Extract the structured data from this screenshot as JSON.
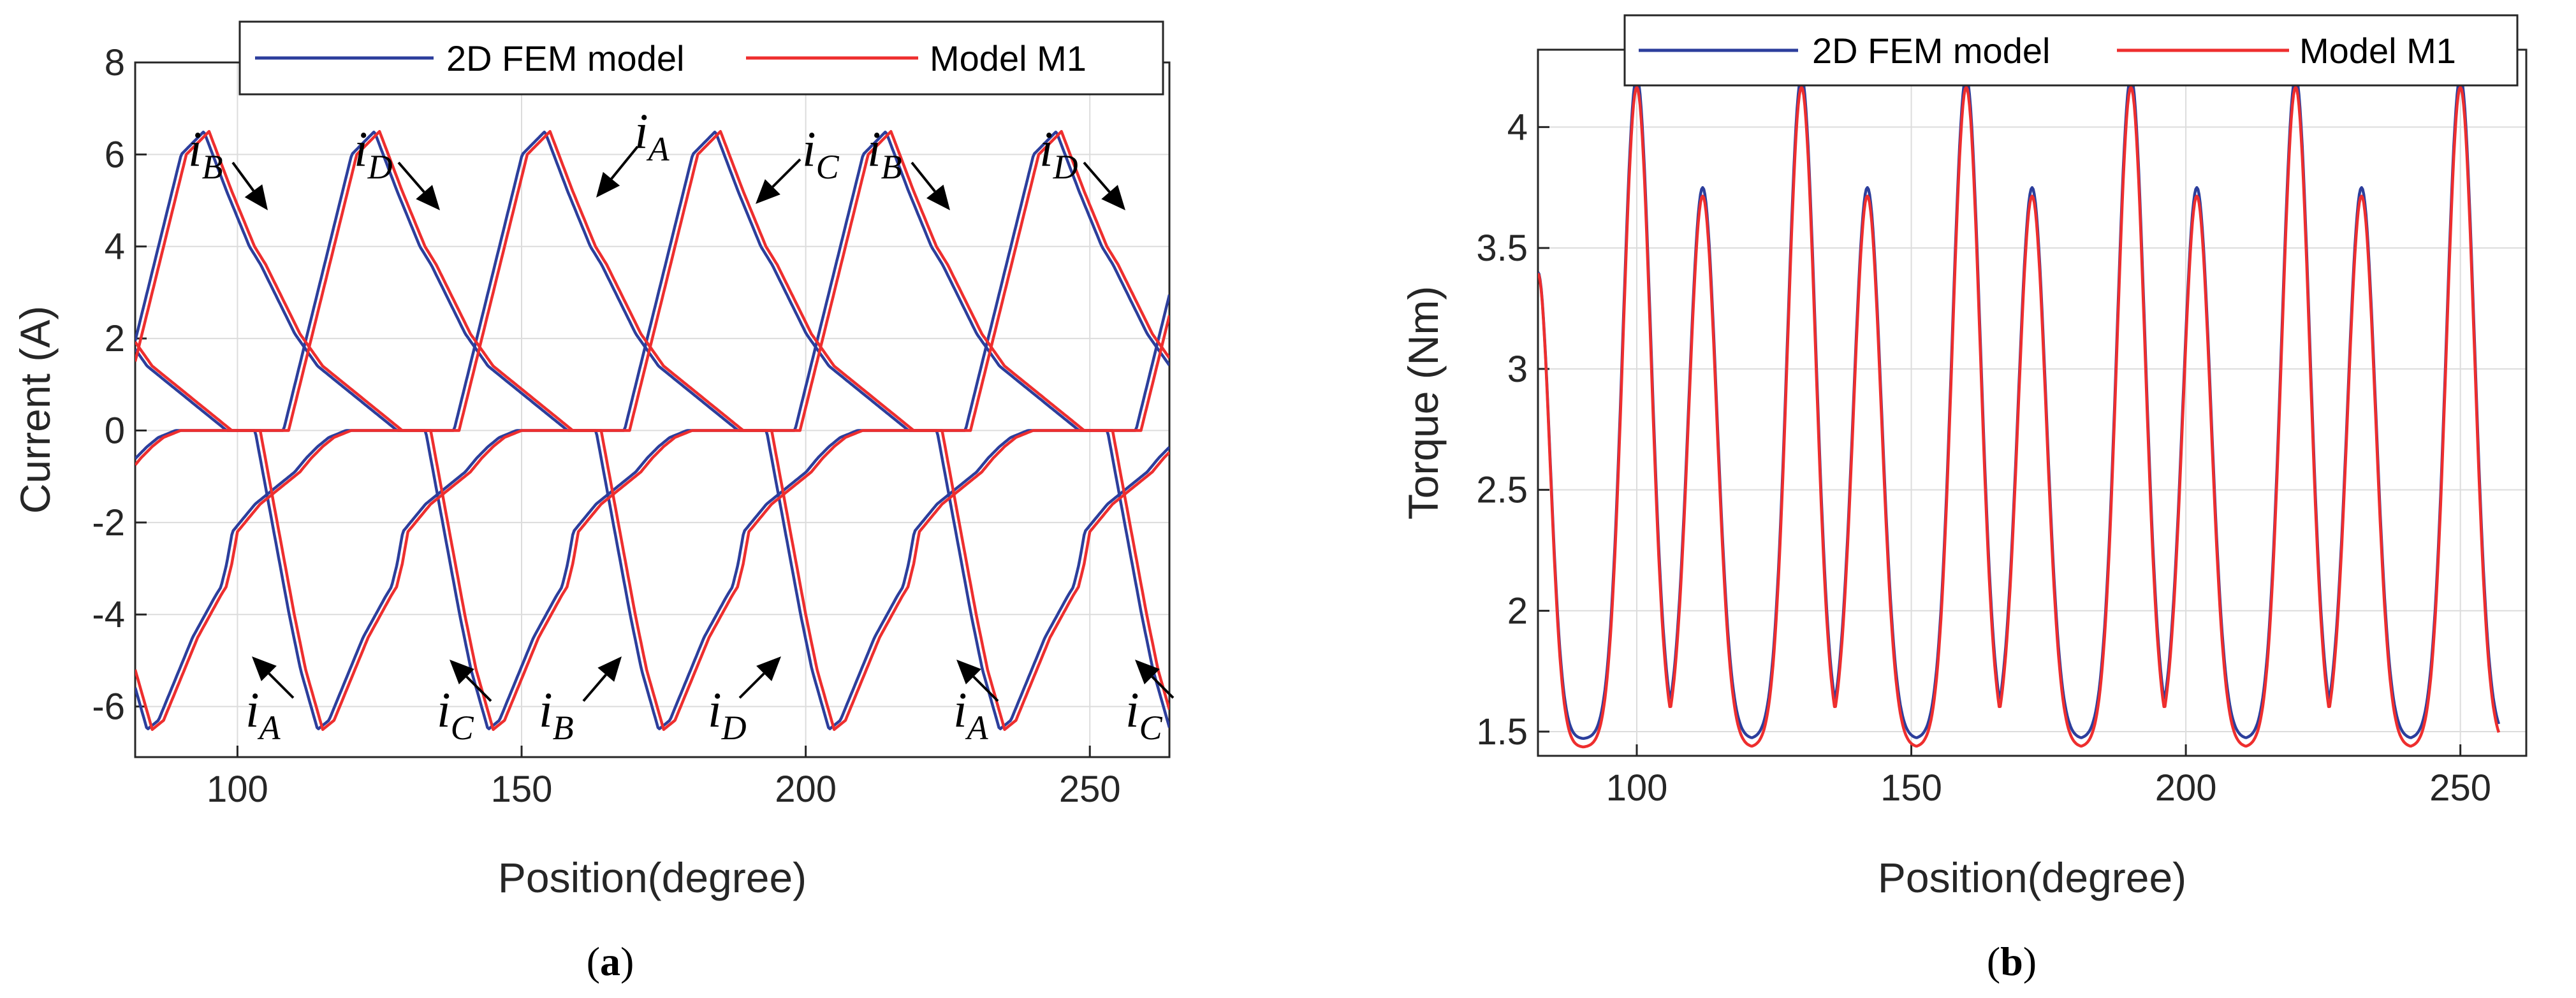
{
  "chart_data": [
    {
      "type": "line",
      "panel": "a",
      "xlabel": "Position(degree)",
      "ylabel": "Current (A)",
      "xlim": [
        82,
        264
      ],
      "ylim": [
        -7.1,
        8
      ],
      "xticks": [
        100,
        150,
        200,
        250
      ],
      "yticks": [
        -6,
        -4,
        -2,
        0,
        2,
        4,
        6,
        8
      ],
      "grid": true,
      "legend": {
        "position": "top",
        "entries": [
          "2D FEM model",
          "Model M1"
        ]
      },
      "series": [
        {
          "name": "2D FEM model",
          "color": "#2c3e9c"
        },
        {
          "name": "Model M1",
          "color": "#ee2e2e"
        }
      ],
      "phase_period_deg": 120,
      "phase_shift_deg": 30,
      "phase_offsets_deg": {
        "A": 37,
        "B": 7,
        "C": 67,
        "D": 97
      },
      "phase_waveform": {
        "x_offset_deg": [
          0,
          3,
          8,
          12,
          13,
          16,
          20,
          24,
          28,
          32,
          36,
          38,
          40,
          44,
          48,
          52,
          56,
          60,
          62,
          64,
          67,
          70,
          73,
          75,
          78,
          80,
          82,
          86,
          90,
          91,
          92,
          93,
          97,
          101,
          104,
          106,
          108,
          110,
          113,
          116,
          117,
          118,
          119,
          120
        ],
        "current_A": [
          0,
          0,
          0,
          0,
          0.5,
          2.0,
          4.0,
          6.0,
          6.5,
          5.2,
          4.0,
          3.6,
          3.1,
          2.1,
          1.4,
          1.0,
          0.6,
          0.2,
          0,
          0,
          0,
          -2.0,
          -4.0,
          -5.2,
          -6.5,
          -6.3,
          -5.7,
          -4.5,
          -3.6,
          -3.4,
          -2.9,
          -2.2,
          -1.6,
          -1.2,
          -0.9,
          -0.6,
          -0.35,
          -0.15,
          0,
          0,
          0,
          0,
          0,
          0
        ]
      },
      "annotations": [
        {
          "label": "i",
          "sub": "B"
        },
        {
          "label": "i",
          "sub": "D"
        },
        {
          "label": "i",
          "sub": "A"
        },
        {
          "label": "i",
          "sub": "C"
        },
        {
          "label": "i",
          "sub": "B"
        },
        {
          "label": "i",
          "sub": "D"
        },
        {
          "label": "i",
          "sub": "A"
        },
        {
          "label": "i",
          "sub": "C"
        },
        {
          "label": "i",
          "sub": "B"
        },
        {
          "label": "i",
          "sub": "D"
        },
        {
          "label": "i",
          "sub": "A"
        },
        {
          "label": "i",
          "sub": "C"
        }
      ]
    },
    {
      "type": "line",
      "panel": "b",
      "xlabel": "Position(degree)",
      "ylabel": "Torque (Nm)",
      "xlim": [
        82,
        262
      ],
      "ylim": [
        1.4,
        4.32
      ],
      "xticks": [
        100,
        150,
        200,
        250
      ],
      "yticks": [
        1.5,
        2,
        2.5,
        3,
        3.5,
        4
      ],
      "grid": true,
      "legend": {
        "position": "top",
        "entries": [
          "2D FEM model",
          "Model M1"
        ]
      },
      "series": [
        {
          "name": "2D FEM model",
          "color": "#2c3e9c",
          "trough_Nm": 1.47,
          "peaks": [
            {
              "x": 100,
              "y": 4.21
            },
            {
              "x": 112,
              "y": 3.75
            },
            {
              "x": 130,
              "y": 4.21
            },
            {
              "x": 142,
              "y": 3.75
            },
            {
              "x": 160,
              "y": 4.21
            },
            {
              "x": 172,
              "y": 3.75
            },
            {
              "x": 190,
              "y": 4.21
            },
            {
              "x": 202,
              "y": 3.75
            },
            {
              "x": 220,
              "y": 4.21
            },
            {
              "x": 232,
              "y": 3.75
            },
            {
              "x": 250,
              "y": 4.21
            }
          ]
        },
        {
          "name": "Model M1",
          "color": "#ee2e2e",
          "trough_Nm": 1.44,
          "peaks": [
            {
              "x": 100,
              "y": 4.17
            },
            {
              "x": 112,
              "y": 3.72
            },
            {
              "x": 130,
              "y": 4.17
            },
            {
              "x": 142,
              "y": 3.72
            },
            {
              "x": 160,
              "y": 4.17
            },
            {
              "x": 172,
              "y": 3.72
            },
            {
              "x": 190,
              "y": 4.17
            },
            {
              "x": 202,
              "y": 3.72
            },
            {
              "x": 220,
              "y": 4.17
            },
            {
              "x": 232,
              "y": 3.72
            },
            {
              "x": 250,
              "y": 4.17
            }
          ]
        }
      ],
      "start_point": {
        "x": 82,
        "y": 3.4
      },
      "end_point": {
        "x": 257,
        "y": 1.46
      },
      "peak_half_width_deg": 3
    }
  ],
  "panel_labels": [
    {
      "open": "(",
      "letter": "a",
      "close": ")"
    },
    {
      "open": "(",
      "letter": "b",
      "close": ")"
    }
  ]
}
